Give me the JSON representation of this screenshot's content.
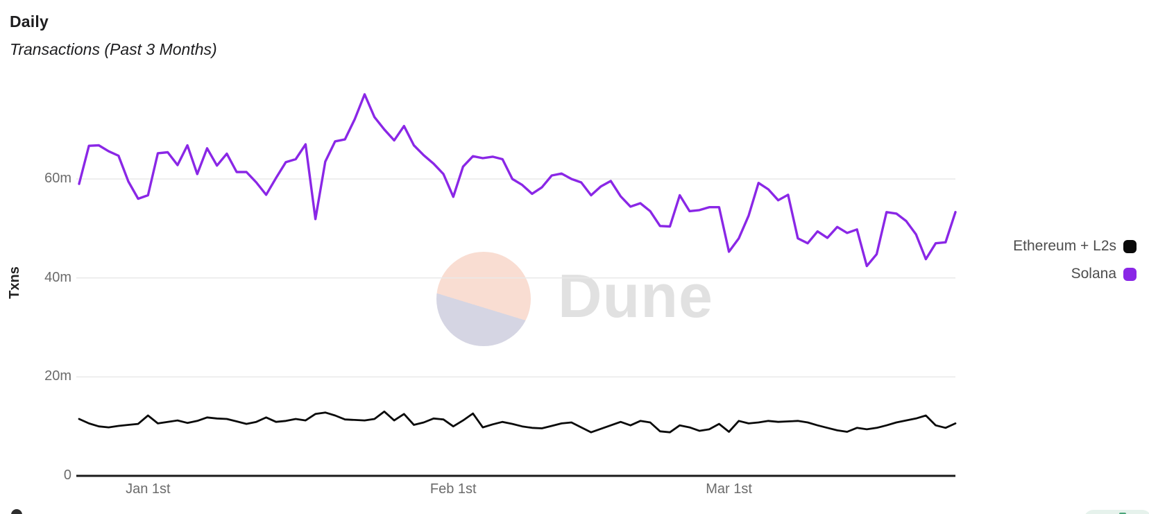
{
  "header": {
    "title": "Daily",
    "subtitle": "Transactions (Past 3 Months)"
  },
  "watermark": {
    "text": "Dune"
  },
  "legend": {
    "items": [
      {
        "label": "Ethereum + L2s",
        "color": "#0a0a0a"
      },
      {
        "label": "Solana",
        "color": "#8a27e6"
      }
    ]
  },
  "chart_data": {
    "type": "line",
    "title": "Daily",
    "subtitle": "Transactions (Past 3 Months)",
    "xlabel": "",
    "ylabel": "Txns",
    "unit": "m (millions of transactions per day)",
    "ylim": [
      0,
      80
    ],
    "grid": "horizontal",
    "legend_position": "right",
    "yticks": [
      {
        "value": 0,
        "label": "0"
      },
      {
        "value": 20,
        "label": "20m"
      },
      {
        "value": 40,
        "label": "40m"
      },
      {
        "value": 60,
        "label": "60m"
      }
    ],
    "xticks": [
      {
        "day": 7,
        "label": "Jan 1st"
      },
      {
        "day": 38,
        "label": "Feb 1st"
      },
      {
        "day": 66,
        "label": "Mar 1st"
      }
    ],
    "x_range_note": "daily points from ~Dec 25 to ~Mar 24",
    "series": [
      {
        "name": "Ethereum + L2s",
        "color": "#0a0a0a",
        "values": [
          11.5,
          10.6,
          10.0,
          9.8,
          10.1,
          10.3,
          10.5,
          12.2,
          10.6,
          10.9,
          11.2,
          10.7,
          11.1,
          11.8,
          11.6,
          11.5,
          11.0,
          10.5,
          10.9,
          11.8,
          10.9,
          11.1,
          11.5,
          11.2,
          12.5,
          12.8,
          12.2,
          11.4,
          11.3,
          11.2,
          11.5,
          13.0,
          11.2,
          12.5,
          10.3,
          10.8,
          11.6,
          11.4,
          10.0,
          11.2,
          12.6,
          9.8,
          10.4,
          10.9,
          10.5,
          10.0,
          9.7,
          9.6,
          10.1,
          10.6,
          10.8,
          9.8,
          8.8,
          9.5,
          10.2,
          10.9,
          10.2,
          11.1,
          10.8,
          9.0,
          8.8,
          10.2,
          9.8,
          9.1,
          9.4,
          10.5,
          8.9,
          11.1,
          10.6,
          10.8,
          11.1,
          10.9,
          11.0,
          11.1,
          10.8,
          10.2,
          9.7,
          9.2,
          8.9,
          9.7,
          9.4,
          9.7,
          10.2,
          10.8,
          11.2,
          11.6,
          12.2,
          10.2,
          9.7,
          10.6
        ]
      },
      {
        "name": "Solana",
        "color": "#8a27e6",
        "values": [
          59.0,
          66.7,
          66.8,
          65.6,
          64.7,
          59.5,
          56.0,
          56.7,
          65.2,
          65.4,
          62.8,
          66.8,
          61.0,
          66.2,
          62.7,
          65.1,
          61.4,
          61.4,
          59.3,
          56.8,
          60.2,
          63.4,
          64.0,
          67.0,
          51.9,
          63.5,
          67.6,
          68.0,
          72.1,
          77.1,
          72.5,
          70.0,
          67.8,
          70.7,
          66.8,
          64.8,
          63.1,
          61.0,
          56.4,
          62.5,
          64.6,
          64.2,
          64.5,
          64.0,
          60.0,
          58.8,
          57.0,
          58.3,
          60.7,
          61.1,
          60.0,
          59.3,
          56.7,
          58.5,
          59.6,
          56.5,
          54.4,
          55.1,
          53.5,
          50.5,
          50.4,
          56.7,
          53.5,
          53.7,
          54.3,
          54.3,
          45.3,
          48.0,
          52.6,
          59.2,
          57.9,
          55.7,
          56.8,
          48.0,
          47.0,
          49.4,
          48.1,
          50.3,
          49.1,
          49.8,
          42.4,
          44.8,
          53.3,
          53.0,
          51.5,
          48.8,
          43.8,
          47.0,
          47.2,
          53.3
        ]
      }
    ]
  }
}
